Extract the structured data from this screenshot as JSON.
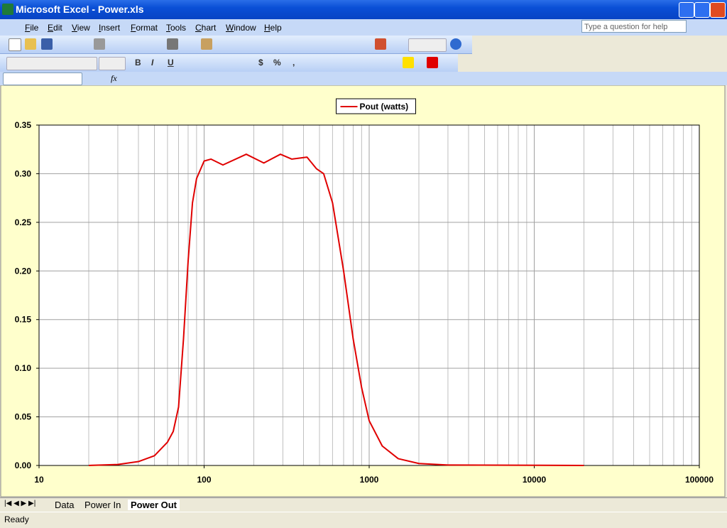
{
  "window": {
    "title": "Microsoft Excel - Power.xls",
    "help_box": "Type a question for help"
  },
  "menu": [
    "File",
    "Edit",
    "View",
    "Insert",
    "Format",
    "Tools",
    "Chart",
    "Window",
    "Help"
  ],
  "toolbar": {
    "format_buttons": [
      "B",
      "I",
      "U"
    ],
    "number_buttons": [
      "$",
      "%",
      ","
    ]
  },
  "formula_bar": {
    "fx": "fx"
  },
  "sheet_tabs": [
    "Data",
    "Power In",
    "Power Out"
  ],
  "status": "Ready",
  "chart_data": {
    "type": "line",
    "x": [
      20,
      30,
      40,
      50,
      60,
      65,
      70,
      75,
      80,
      85,
      90,
      100,
      110,
      130,
      180,
      230,
      290,
      340,
      420,
      480,
      530,
      600,
      700,
      800,
      900,
      1000,
      1200,
      1500,
      2000,
      3000,
      20000
    ],
    "series": [
      {
        "name": "Pout (watts)",
        "color": "#e00000",
        "values": [
          0,
          0.001,
          0.004,
          0.01,
          0.024,
          0.035,
          0.06,
          0.13,
          0.21,
          0.27,
          0.295,
          0.313,
          0.315,
          0.309,
          0.32,
          0.311,
          0.32,
          0.315,
          0.317,
          0.305,
          0.3,
          0.27,
          0.2,
          0.13,
          0.08,
          0.046,
          0.02,
          0.007,
          0.002,
          0.0005,
          0
        ]
      }
    ],
    "xscale": "log",
    "xlim": [
      10,
      100000
    ],
    "xticks": [
      10,
      100,
      1000,
      10000,
      100000
    ],
    "ylim": [
      0,
      0.35
    ],
    "yticks": [
      {
        "value": 0,
        "label": "0.00"
      },
      0.05,
      {
        "value": 0.1,
        "label": "0.10"
      },
      0.15,
      {
        "value": 0.2,
        "label": "0.20"
      },
      0.25,
      {
        "value": 0.3,
        "label": "0.30"
      },
      0.35
    ],
    "grid": true,
    "minor_grid": true,
    "legend": "top"
  }
}
